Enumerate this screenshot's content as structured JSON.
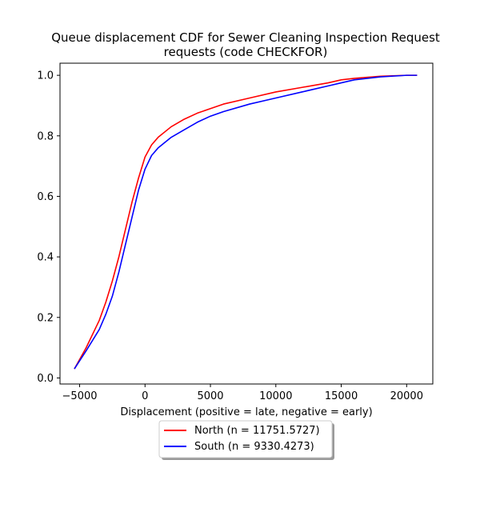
{
  "chart_data": {
    "type": "line",
    "title_line1": "Queue displacement CDF for Sewer Cleaning Inspection Request",
    "title_line2": "requests (code CHECKFOR)",
    "xlabel": "Displacement (positive = late, negative = early)",
    "ylabel": "",
    "xlim": [
      -6500,
      22000
    ],
    "ylim": [
      -0.02,
      1.04
    ],
    "xticks": [
      -5000,
      0,
      5000,
      10000,
      15000,
      20000
    ],
    "xtick_labels": [
      "−5000",
      "0",
      "5000",
      "10000",
      "15000",
      "20000"
    ],
    "yticks": [
      0.0,
      0.2,
      0.4,
      0.6,
      0.8,
      1.0
    ],
    "ytick_labels": [
      "0.0",
      "0.2",
      "0.4",
      "0.6",
      "0.8",
      "1.0"
    ],
    "grid": false,
    "legend_position": "below",
    "series": [
      {
        "name": "North (n = 11751.5727)",
        "color": "#ff0000",
        "x": [
          -5400,
          -4500,
          -3500,
          -3000,
          -2500,
          -2000,
          -1500,
          -1000,
          -500,
          0,
          500,
          1000,
          2000,
          3000,
          4000,
          5000,
          6000,
          8000,
          10000,
          12000,
          14000,
          15000,
          16000,
          18000,
          20000,
          20800
        ],
        "y": [
          0.03,
          0.1,
          0.19,
          0.25,
          0.32,
          0.4,
          0.49,
          0.58,
          0.66,
          0.73,
          0.77,
          0.795,
          0.83,
          0.855,
          0.875,
          0.89,
          0.905,
          0.925,
          0.945,
          0.96,
          0.975,
          0.985,
          0.99,
          0.997,
          1.0,
          1.0
        ]
      },
      {
        "name": "South (n = 9330.4273)",
        "color": "#0000ff",
        "x": [
          -5400,
          -4500,
          -3500,
          -3000,
          -2500,
          -2000,
          -1500,
          -1000,
          -500,
          0,
          500,
          1000,
          2000,
          3000,
          4000,
          5000,
          6000,
          8000,
          10000,
          12000,
          14000,
          15000,
          16000,
          18000,
          20000,
          20800
        ],
        "y": [
          0.03,
          0.09,
          0.16,
          0.21,
          0.27,
          0.35,
          0.44,
          0.53,
          0.62,
          0.69,
          0.735,
          0.76,
          0.795,
          0.82,
          0.845,
          0.865,
          0.88,
          0.905,
          0.925,
          0.945,
          0.965,
          0.975,
          0.985,
          0.995,
          1.0,
          1.0
        ]
      }
    ]
  }
}
